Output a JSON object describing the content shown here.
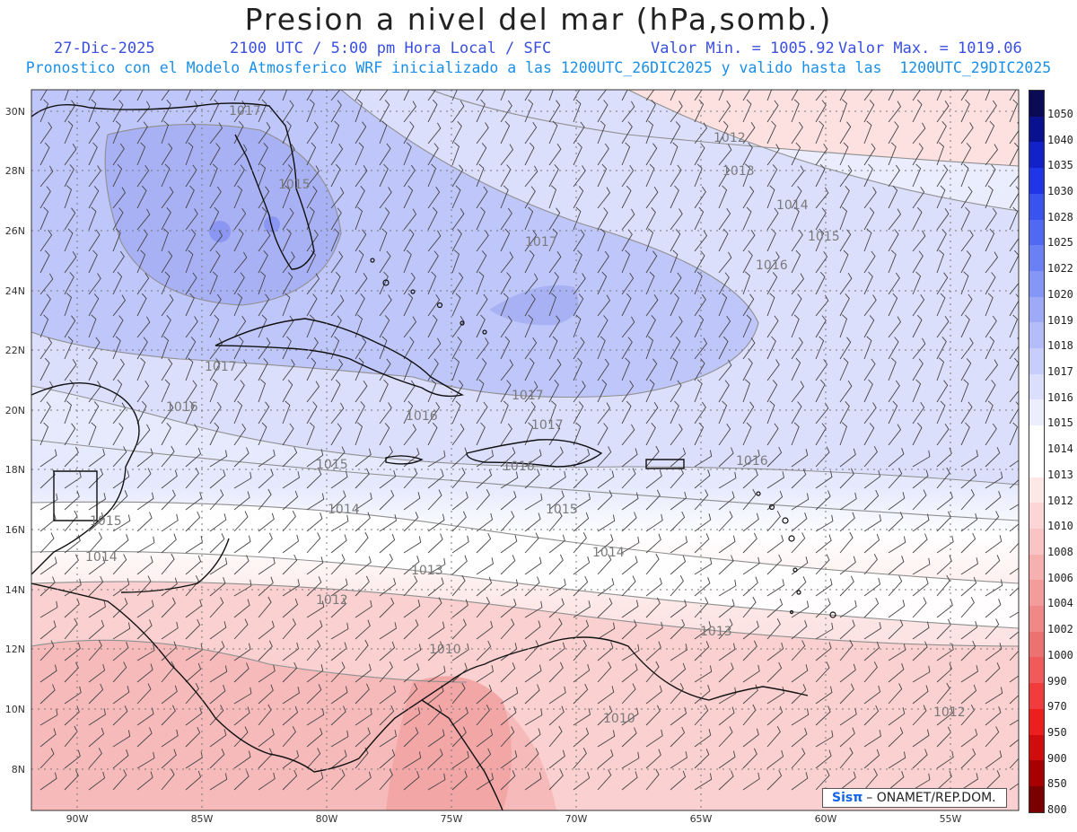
{
  "header": {
    "title": "Presion a nivel del mar (hPa,somb.)",
    "date": "27-Dic-2025",
    "time": "2100 UTC / 5:00 pm Hora Local / SFC",
    "min": "Valor Min. = 1005.92",
    "max": "Valor Max. = 1019.06",
    "subtitle": "Pronostico con el Modelo Atmosferico WRF inicializado a las 1200UTC_26DIC2025 y valido hasta las  1200UTC_29DIC2025"
  },
  "credit": {
    "brand": "Sisπ",
    "text": "– ONAMET/REP.DOM."
  },
  "axes": {
    "lat_labels": [
      "30N",
      "28N",
      "26N",
      "24N",
      "22N",
      "20N",
      "18N",
      "16N",
      "14N",
      "12N",
      "10N",
      "8N"
    ],
    "lon_labels": [
      "90W",
      "85W",
      "80W",
      "75W",
      "70W",
      "65W",
      "60W",
      "55W"
    ]
  },
  "colorbar": {
    "labels": [
      "1050",
      "1040",
      "1035",
      "1030",
      "1028",
      "1025",
      "1022",
      "1020",
      "1019",
      "1018",
      "1017",
      "1016",
      "1015",
      "1014",
      "1013",
      "1012",
      "1010",
      "1008",
      "1006",
      "1004",
      "1002",
      "1000",
      "990",
      "970",
      "950",
      "900",
      "850",
      "800"
    ],
    "colors": [
      "#0a0a55",
      "#0a1190",
      "#1222c8",
      "#2036e6",
      "#3a52ee",
      "#5068f2",
      "#6a80f4",
      "#8496f6",
      "#9eaaf8",
      "#b4bdf9",
      "#c8cefb",
      "#dcdffc",
      "#eceefe",
      "#ffffff",
      "#ffffff",
      "#fde8e8",
      "#fcd6d6",
      "#fac4c4",
      "#f7b0b0",
      "#f49c9c",
      "#f08888",
      "#ec7272",
      "#f05a5a",
      "#f03c3c",
      "#ec1e1e",
      "#d00c0c",
      "#a80000",
      "#7a0000"
    ]
  },
  "contour_labels": [
    "1017",
    "1015",
    "1012",
    "1013",
    "1014",
    "1015",
    "1016",
    "1017",
    "1017",
    "1016",
    "1016",
    "1015",
    "1014",
    "1013",
    "1012",
    "1010",
    "1017",
    "1017",
    "1016",
    "1016",
    "1015",
    "1014",
    "1015",
    "1014",
    "1013",
    "1012",
    "1010",
    "1013",
    "1014",
    "1012",
    "1010",
    "1016",
    "1016"
  ],
  "map_colors": {
    "low_pressure": "#f4b8b8",
    "mid": "#ffffff",
    "high_pressure": "#a9b1f5",
    "coast": "#111111",
    "contour": "#8f8f8f",
    "barb": "#333333"
  }
}
